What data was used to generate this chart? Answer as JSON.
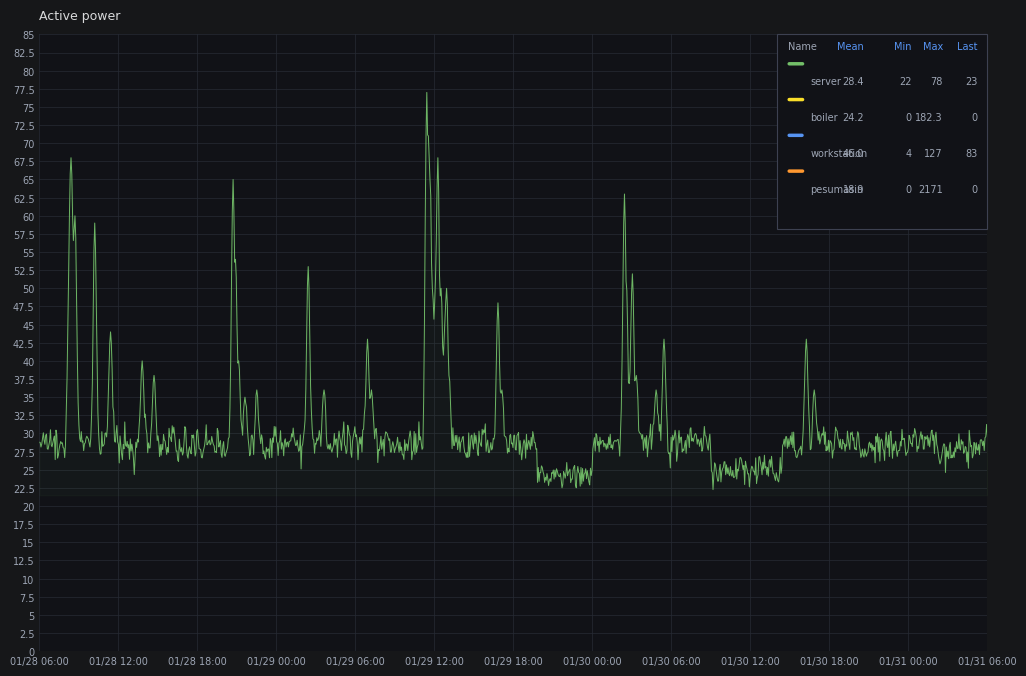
{
  "title": "Active power",
  "bg_color": "#161719",
  "plot_bg_color": "#111217",
  "grid_color": "#272b35",
  "text_color": "#9da5b4",
  "title_color": "#d8d9da",
  "ylim": [
    0,
    85
  ],
  "ytick_step": 2.5,
  "xtick_labels": [
    "01/28 06:00",
    "01/28 12:00",
    "01/28 18:00",
    "01/29 00:00",
    "01/29 06:00",
    "01/29 12:00",
    "01/29 18:00",
    "01/30 00:00",
    "01/30 06:00",
    "01/30 12:00",
    "01/30 18:00",
    "01/31 00:00",
    "01/31 06:00"
  ],
  "legend": {
    "headers": [
      "Name",
      "Mean",
      "Min",
      "Max",
      "Last"
    ],
    "header_color": "#5794f2",
    "rows": [
      {
        "name": "server",
        "color": "#73bf69",
        "line_style": "solid",
        "mean": "28.4",
        "min": "22",
        "max": "78",
        "last": "23"
      },
      {
        "name": "boiler",
        "color": "#fade2a",
        "line_style": "solid",
        "mean": "24.2",
        "min": "0",
        "max": "182.3",
        "last": "0"
      },
      {
        "name": "workstation",
        "color": "#5794f2",
        "line_style": "dashed",
        "mean": "46.0",
        "min": "4",
        "max": "127",
        "last": "83"
      },
      {
        "name": "pesumasin",
        "color": "#ff9830",
        "line_style": "solid",
        "mean": "18.9",
        "min": "0",
        "max": "2171",
        "last": "0"
      }
    ]
  },
  "server_color": "#73bf69",
  "line_width": 0.7,
  "num_points": 1200,
  "baseline": 27.5,
  "noise_std": 1.0
}
